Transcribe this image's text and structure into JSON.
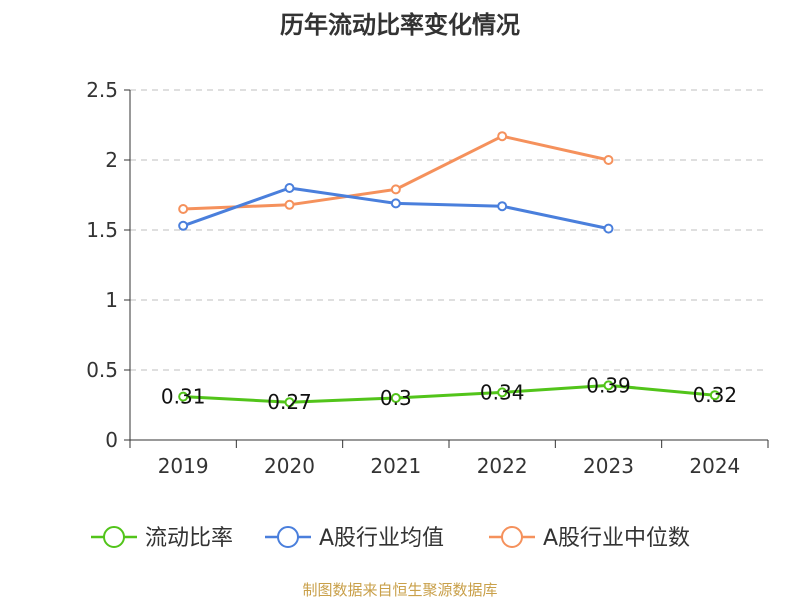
{
  "chart_data": {
    "type": "line",
    "title": "历年流动比率变化情况",
    "categories": [
      "2019",
      "2020",
      "2021",
      "2022",
      "2023",
      "2024"
    ],
    "ylim": [
      0,
      2.5
    ],
    "yticks": [
      "0",
      "0.5",
      "1",
      "1.5",
      "2",
      "2.5"
    ],
    "grid": true,
    "legend_position": "bottom",
    "series": [
      {
        "name": "流动比率",
        "color": "#52c41a",
        "values": [
          0.31,
          0.27,
          0.3,
          0.34,
          0.39,
          0.32
        ],
        "labels": [
          "0.31",
          "0.27",
          "0.3",
          "0.34",
          "0.39",
          "0.32"
        ],
        "show_labels": true
      },
      {
        "name": "A股行业均值",
        "color": "#4a7fdc",
        "values": [
          1.53,
          1.8,
          1.69,
          1.67,
          1.51,
          null
        ],
        "show_labels": false
      },
      {
        "name": "A股行业中位数",
        "color": "#f5915c",
        "values": [
          1.65,
          1.68,
          1.79,
          2.17,
          2.0,
          null
        ],
        "show_labels": false
      }
    ],
    "source": "制图数据来自恒生聚源数据库"
  }
}
